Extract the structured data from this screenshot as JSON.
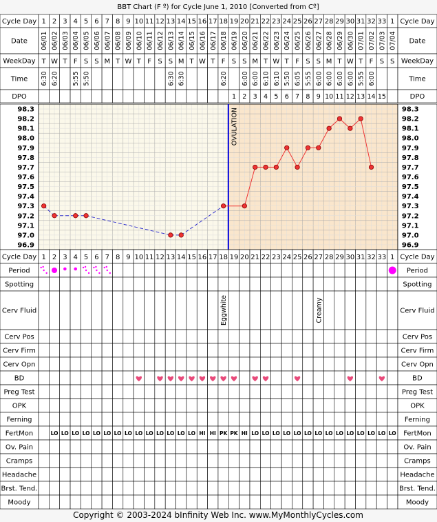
{
  "title": "BBT Chart (F º) for Cycle June 1, 2010  [Converted from Cº]",
  "footer": "Copyright © 2003-2024 bInfinity Web Inc.    www.MyMonthlyCycles.com",
  "labels": {
    "cycle_day": "Cycle Day",
    "date": "Date",
    "weekday": "WeekDay",
    "time": "Time",
    "dpo": "DPO",
    "ovulation": "OVULATION"
  },
  "cycle_days": [
    "1",
    "2",
    "3",
    "4",
    "5",
    "6",
    "7",
    "8",
    "9",
    "10",
    "11",
    "12",
    "13",
    "14",
    "15",
    "16",
    "17",
    "18",
    "19",
    "20",
    "21",
    "22",
    "23",
    "24",
    "25",
    "26",
    "27",
    "28",
    "29",
    "30",
    "31",
    "32",
    "33",
    "1"
  ],
  "dates": [
    "06/01",
    "06/02",
    "06/03",
    "06/04",
    "06/05",
    "06/06",
    "06/07",
    "06/08",
    "06/09",
    "06/10",
    "06/11",
    "06/12",
    "06/13",
    "06/14",
    "06/15",
    "06/16",
    "06/17",
    "06/18",
    "06/19",
    "06/20",
    "06/21",
    "06/22",
    "06/23",
    "06/24",
    "06/25",
    "06/26",
    "06/27",
    "06/28",
    "06/29",
    "06/30",
    "07/01",
    "07/02",
    "07/03",
    "07/04"
  ],
  "weekdays": [
    "T",
    "W",
    "T",
    "F",
    "S",
    "S",
    "M",
    "T",
    "W",
    "T",
    "F",
    "S",
    "S",
    "M",
    "T",
    "W",
    "T",
    "F",
    "S",
    "S",
    "M",
    "T",
    "W",
    "T",
    "F",
    "S",
    "S",
    "M",
    "T",
    "W",
    "T",
    "F",
    "S",
    "S"
  ],
  "times": [
    "6:30",
    "6:20",
    "",
    "5:55",
    "5:50",
    "",
    "",
    "",
    "",
    "",
    "",
    "",
    "6:30",
    "6:30",
    "",
    "",
    "",
    "6:20",
    "",
    "6:00",
    "6:00",
    "6:10",
    "6:10",
    "5:50",
    "6:05",
    "5:55",
    "6:00",
    "6:00",
    "6:00",
    "6:00",
    "5:55",
    "6:00",
    "",
    ""
  ],
  "dpo": [
    "",
    "",
    "",
    "",
    "",
    "",
    "",
    "",
    "",
    "",
    "",
    "",
    "",
    "",
    "",
    "",
    "",
    "",
    "1",
    "2",
    "3",
    "4",
    "5",
    "6",
    "7",
    "8",
    "9",
    "10",
    "11",
    "12",
    "13",
    "14",
    "15",
    ""
  ],
  "chart_data": {
    "type": "line",
    "y_ticks": [
      "98.3",
      "98.2",
      "98.1",
      "98.0",
      "97.9",
      "97.8",
      "97.7",
      "97.6",
      "97.5",
      "97.4",
      "97.3",
      "97.2",
      "97.1",
      "97.0",
      "96.9"
    ],
    "ylim": [
      96.9,
      98.3
    ],
    "ovulation_day": 18,
    "temps": [
      {
        "day": 1,
        "temp": 97.3
      },
      {
        "day": 2,
        "temp": 97.2
      },
      {
        "day": 4,
        "temp": 97.2
      },
      {
        "day": 5,
        "temp": 97.2
      },
      {
        "day": 13,
        "temp": 97.0
      },
      {
        "day": 14,
        "temp": 97.0
      },
      {
        "day": 18,
        "temp": 97.3
      },
      {
        "day": 20,
        "temp": 97.3
      },
      {
        "day": 21,
        "temp": 97.7
      },
      {
        "day": 22,
        "temp": 97.7
      },
      {
        "day": 23,
        "temp": 97.7
      },
      {
        "day": 24,
        "temp": 97.9
      },
      {
        "day": 25,
        "temp": 97.7
      },
      {
        "day": 26,
        "temp": 97.9
      },
      {
        "day": 27,
        "temp": 97.9
      },
      {
        "day": 28,
        "temp": 98.1
      },
      {
        "day": 29,
        "temp": 98.2
      },
      {
        "day": 30,
        "temp": 98.1
      },
      {
        "day": 31,
        "temp": 98.2
      },
      {
        "day": 32,
        "temp": 97.7
      }
    ],
    "colors": {
      "pre_ovulation": "#3333cc",
      "post_ovulation": "#ee3333",
      "ovulation_line": "#0000dd"
    }
  },
  "rows": [
    {
      "label": "Cycle Day",
      "type": "cycle"
    },
    {
      "label": "Period",
      "type": "period",
      "values": {
        "1": "spot",
        "2": "dot",
        "3": "small",
        "4": "small",
        "5": "spot",
        "6": "spot",
        "7": "spot",
        "34": "big"
      }
    },
    {
      "label": "Spotting",
      "type": "blank"
    },
    {
      "label": "Cerv Fluid",
      "type": "fluid",
      "values": {
        "18": "Eggwhite",
        "27": "Creamy"
      }
    },
    {
      "label": "Cerv Pos",
      "type": "blank"
    },
    {
      "label": "Cerv Firm",
      "type": "blank"
    },
    {
      "label": "Cerv Opn",
      "type": "blank"
    },
    {
      "label": "BD",
      "type": "heart",
      "days": [
        10,
        12,
        13,
        14,
        15,
        16,
        17,
        18,
        19,
        21,
        22,
        25,
        30,
        33
      ]
    },
    {
      "label": "Preg Test",
      "type": "blank"
    },
    {
      "label": "OPK",
      "type": "blank"
    },
    {
      "label": "Ferning",
      "type": "blank"
    },
    {
      "label": "FertMon",
      "type": "text",
      "values": {
        "2": "LO",
        "3": "LO",
        "4": "LO",
        "5": "LO",
        "6": "LO",
        "7": "LO",
        "8": "LO",
        "9": "LO",
        "10": "LO",
        "11": "LO",
        "12": "LO",
        "13": "LO",
        "14": "LO",
        "15": "LO",
        "16": "HI",
        "17": "HI",
        "18": "PK",
        "19": "PK",
        "20": "HI",
        "21": "LO",
        "22": "LO",
        "23": "LO",
        "24": "LO",
        "25": "LO",
        "26": "LO",
        "27": "LO",
        "28": "LO",
        "29": "LO",
        "30": "LO",
        "31": "LO",
        "32": "LO",
        "33": "LO",
        "34": "LO"
      }
    },
    {
      "label": "Ov. Pain",
      "type": "blank"
    },
    {
      "label": "Cramps",
      "type": "blank"
    },
    {
      "label": "Headache",
      "type": "blank"
    },
    {
      "label": "Brst. Tend.",
      "type": "blank"
    },
    {
      "label": "Moody",
      "type": "blank"
    }
  ]
}
